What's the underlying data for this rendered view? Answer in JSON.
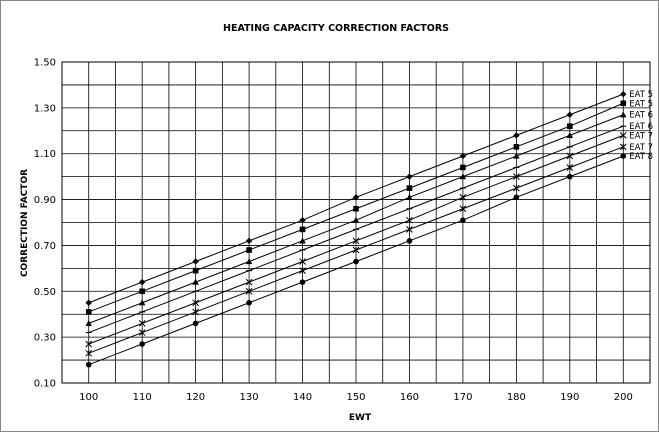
{
  "chart_data": {
    "type": "line",
    "title": "HEATING CAPACITY CORRECTION FACTORS",
    "xlabel": "EWT",
    "ylabel": "CORRECTION FACTOR",
    "x": [
      100,
      110,
      120,
      130,
      140,
      150,
      160,
      170,
      180,
      190,
      200
    ],
    "xlim": [
      95,
      205
    ],
    "ylim": [
      0.1,
      1.5
    ],
    "yticks": [
      "0.10",
      "0.30",
      "0.50",
      "0.70",
      "0.90",
      "1.10",
      "1.30",
      "1.50"
    ],
    "xticks": [
      "100",
      "110",
      "120",
      "130",
      "140",
      "150",
      "160",
      "170",
      "180",
      "190",
      "200"
    ],
    "grid": true,
    "legend": "right, at line ends",
    "line_color": "#000000",
    "series": [
      {
        "name": "EAT 5",
        "marker": "diamond",
        "values": [
          0.45,
          0.54,
          0.63,
          0.72,
          0.81,
          0.91,
          1.0,
          1.09,
          1.18,
          1.27,
          1.36
        ]
      },
      {
        "name": "EAT 5",
        "marker": "square",
        "values": [
          0.41,
          0.5,
          0.59,
          0.68,
          0.77,
          0.86,
          0.95,
          1.04,
          1.13,
          1.22,
          1.32
        ]
      },
      {
        "name": "EAT 6",
        "marker": "triangle",
        "values": [
          0.36,
          0.45,
          0.54,
          0.63,
          0.72,
          0.81,
          0.91,
          1.0,
          1.09,
          1.18,
          1.27
        ]
      },
      {
        "name": "EAT 6",
        "marker": "plus",
        "values": [
          0.32,
          0.41,
          0.5,
          0.59,
          0.68,
          0.77,
          0.86,
          0.95,
          1.04,
          1.13,
          1.22
        ]
      },
      {
        "name": "EAT 7",
        "marker": "x",
        "values": [
          0.27,
          0.36,
          0.45,
          0.54,
          0.63,
          0.72,
          0.81,
          0.91,
          1.0,
          1.09,
          1.18
        ]
      },
      {
        "name": "EAT 7",
        "marker": "star",
        "values": [
          0.23,
          0.32,
          0.41,
          0.5,
          0.59,
          0.68,
          0.77,
          0.86,
          0.95,
          1.04,
          1.13
        ]
      },
      {
        "name": "EAT 8",
        "marker": "circle",
        "values": [
          0.18,
          0.27,
          0.36,
          0.45,
          0.54,
          0.63,
          0.72,
          0.81,
          0.91,
          1.0,
          1.09
        ]
      }
    ]
  }
}
